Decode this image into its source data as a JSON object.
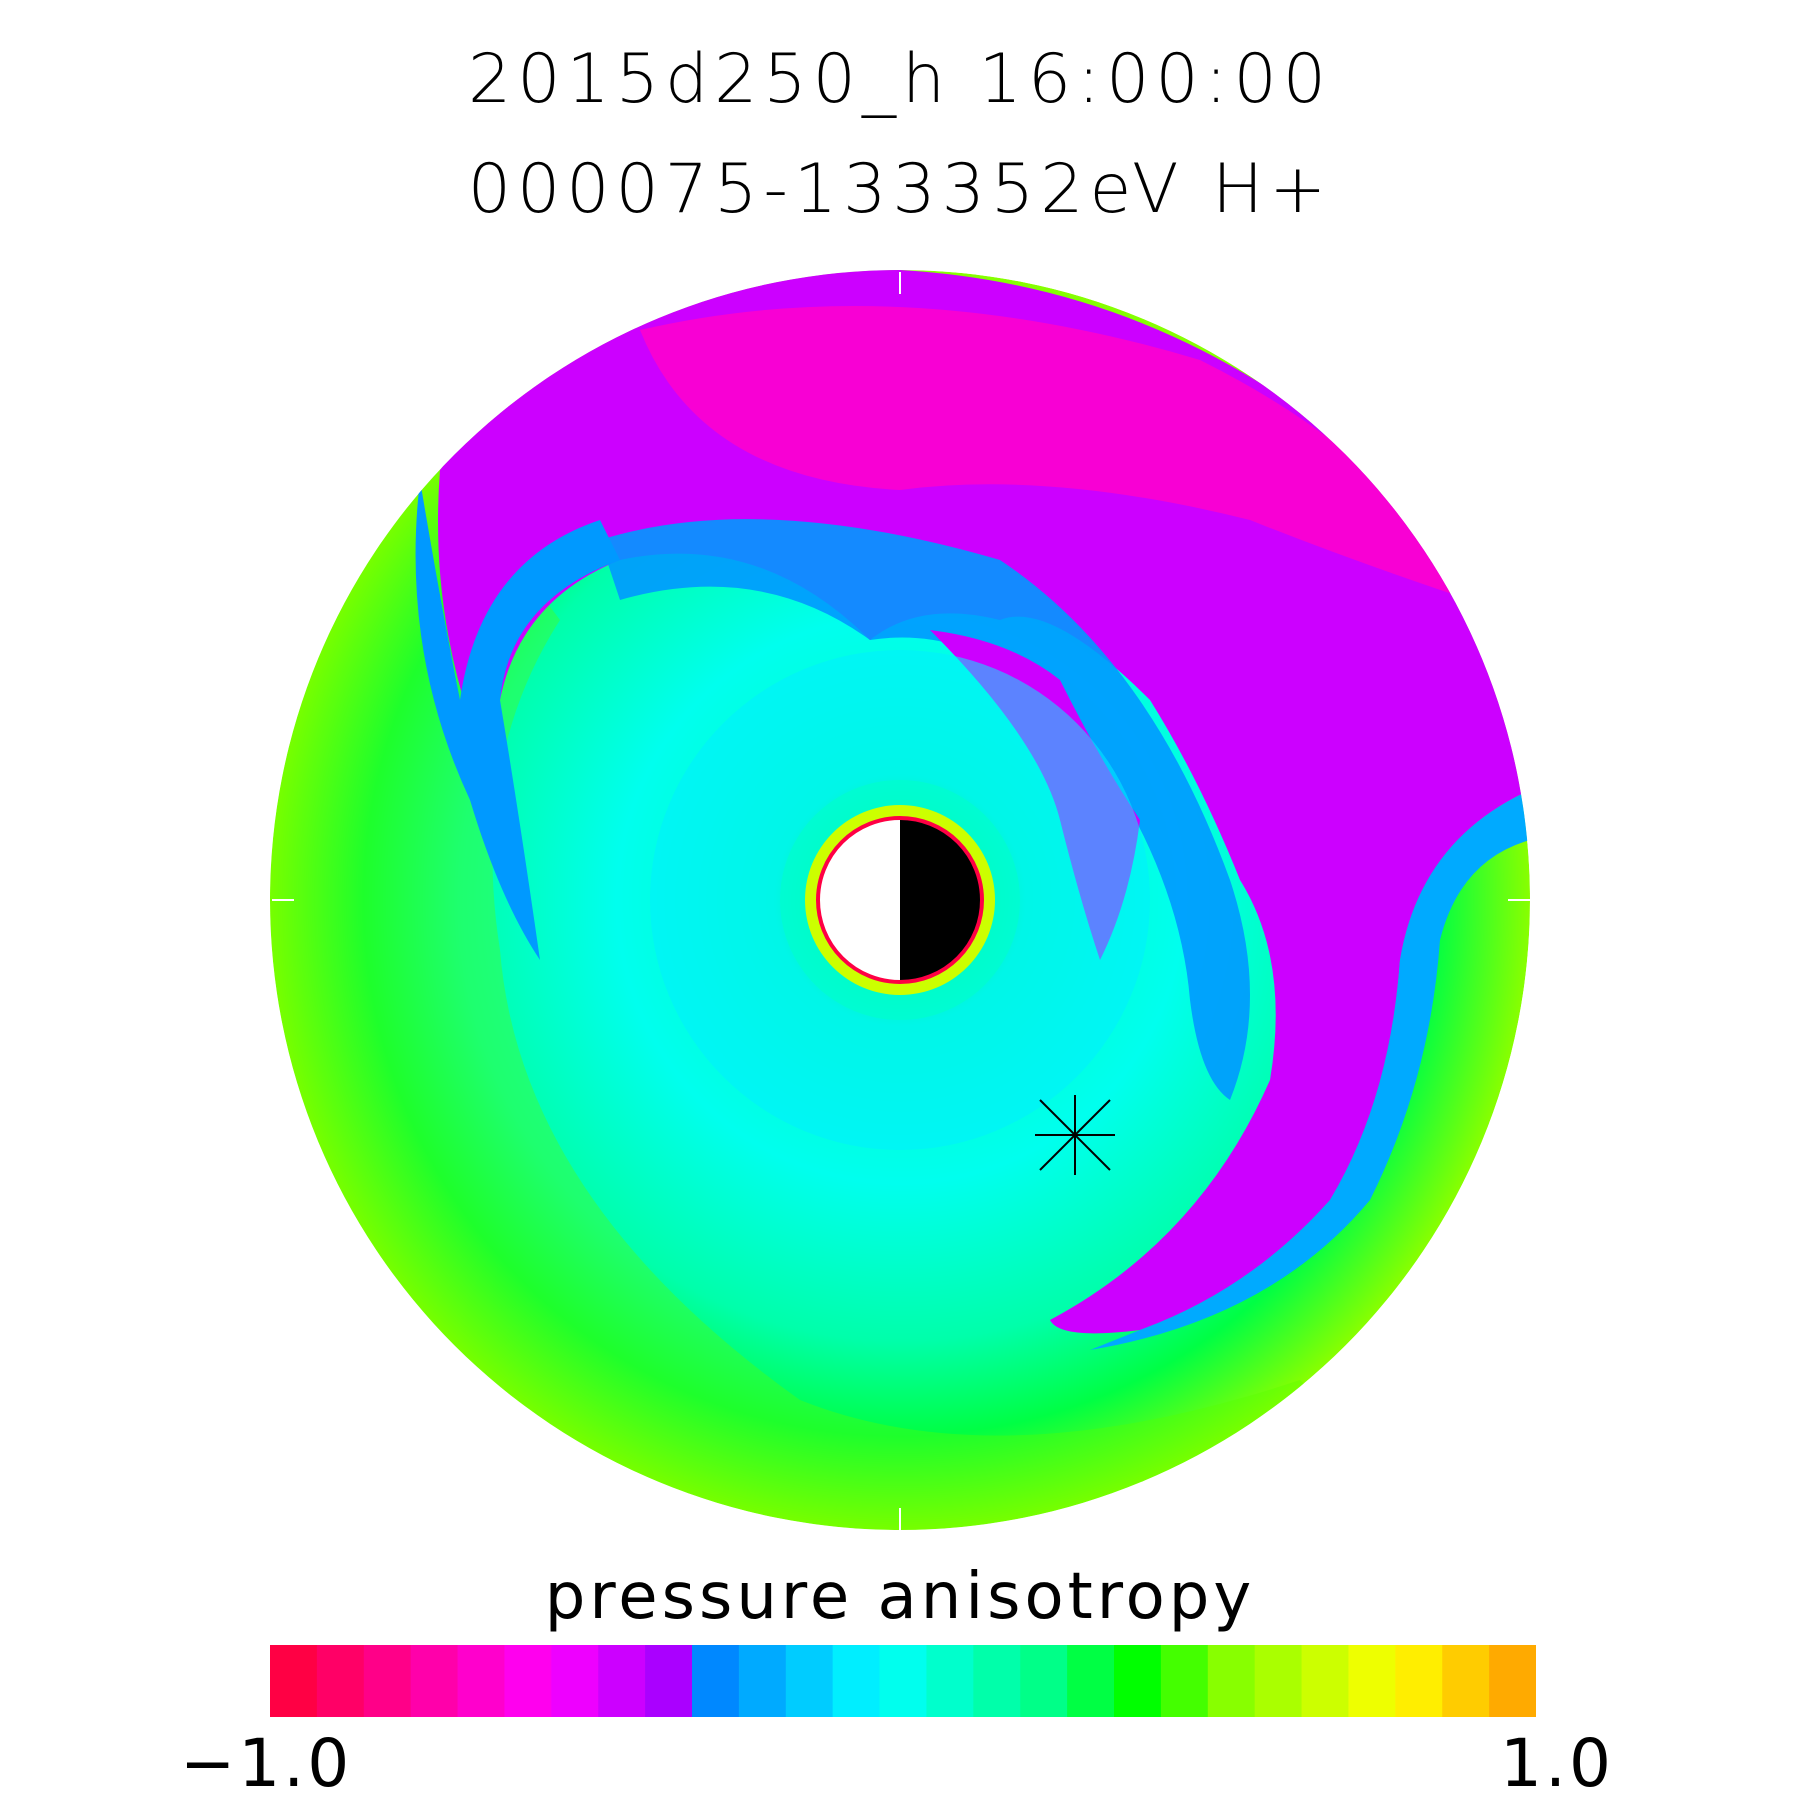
{
  "chart_data": {
    "type": "heatmap",
    "title": "2015d250_h   16:00:00",
    "subtitle": "000075-133352eV H+",
    "colorbar": {
      "label": "pressure anisotropy",
      "min": -1.0,
      "max": 1.0,
      "min_label": "−1.0",
      "max_label": "1.0",
      "colors": [
        "#ff0044",
        "#ff0066",
        "#ff0088",
        "#ff00aa",
        "#ff00cc",
        "#ff00ee",
        "#ee00ff",
        "#cc00ff",
        "#aa00ff",
        "#0088ff",
        "#00aaff",
        "#00ccff",
        "#00eeff",
        "#00ffee",
        "#00ffcc",
        "#00ffaa",
        "#00ff88",
        "#00ff44",
        "#00ff00",
        "#44ff00",
        "#88ff00",
        "#aaff00",
        "#ccff00",
        "#eeff00",
        "#ffee00",
        "#ffcc00",
        "#ffaa00"
      ]
    },
    "polar_plot": {
      "description_values": {
        "outer_ring_dayside_value": 0.7,
        "dusk_dawn_flanks_value": 0.5,
        "inner_ring_value": 0.2,
        "nightside_pre_midnight_value": -0.4,
        "near_earth_value": 0.9
      },
      "earth_marker": "day-night disk",
      "spacecraft_marker": "asterisk"
    }
  }
}
